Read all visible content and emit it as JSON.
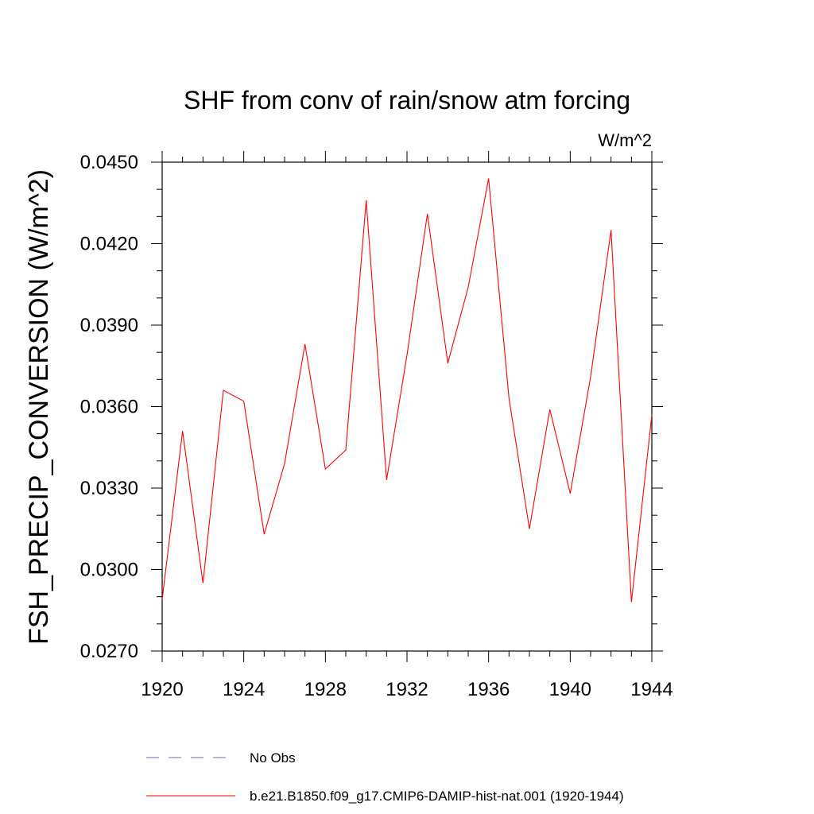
{
  "chart_data": {
    "type": "line",
    "title": "SHF from conv of rain/snow atm forcing",
    "units_label": "W/m^2",
    "xlabel": "",
    "ylabel": "FSH_PRECIP_CONVERSION  (W/m^2)",
    "xlim": [
      1920,
      1944
    ],
    "ylim": [
      0.027,
      0.045
    ],
    "x_ticks": [
      "1920",
      "1924",
      "1928",
      "1932",
      "1936",
      "1940",
      "1944"
    ],
    "y_ticks": [
      "0.0270",
      "0.0300",
      "0.0330",
      "0.0360",
      "0.0390",
      "0.0420",
      "0.0450"
    ],
    "grid": false,
    "legend_position": "bottom",
    "series": [
      {
        "name": "b.e21.B1850.f09_g17.CMIP6-DAMIP-hist-nat.001 (1920-1944)",
        "color": "#ff0000",
        "dash": "solid",
        "x": [
          1920,
          1921,
          1922,
          1923,
          1924,
          1925,
          1926,
          1927,
          1928,
          1929,
          1930,
          1931,
          1932,
          1933,
          1934,
          1935,
          1936,
          1937,
          1938,
          1939,
          1940,
          1941,
          1942,
          1943,
          1944
        ],
        "values": [
          0.0289,
          0.0351,
          0.0295,
          0.0366,
          0.0362,
          0.0313,
          0.0339,
          0.0383,
          0.0337,
          0.0344,
          0.0436,
          0.0333,
          0.0379,
          0.0431,
          0.0376,
          0.0404,
          0.0444,
          0.0363,
          0.0315,
          0.0359,
          0.0328,
          0.0371,
          0.0425,
          0.0288,
          0.0357
        ]
      }
    ],
    "legend_entries": [
      {
        "name": "No Obs",
        "color": "#6a6ac0",
        "dash": "dashed"
      },
      {
        "name": "b.e21.B1850.f09_g17.CMIP6-DAMIP-hist-nat.001 (1920-1944)",
        "color": "#ff0000",
        "dash": "solid"
      }
    ]
  }
}
